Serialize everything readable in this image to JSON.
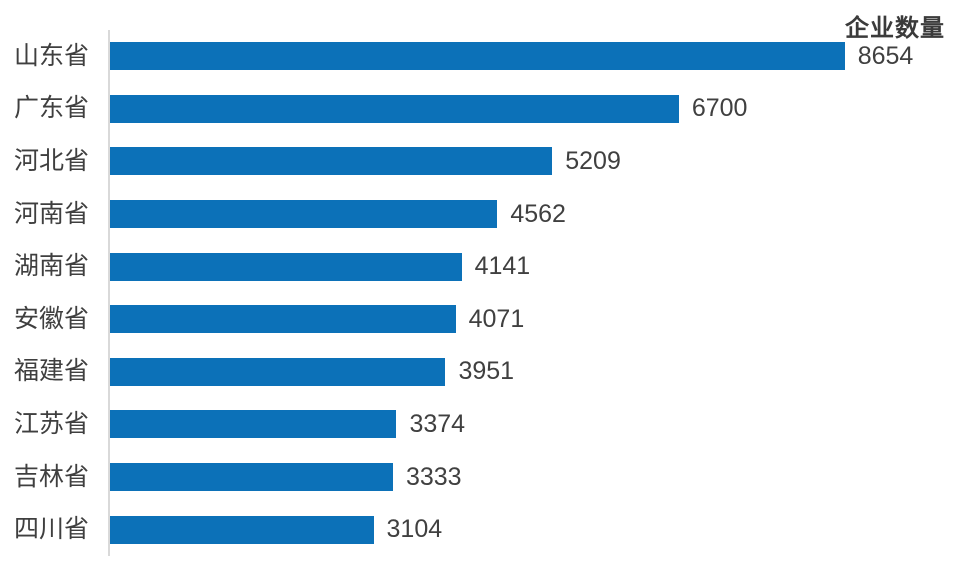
{
  "page": {
    "background": "#FFFFFF"
  },
  "chart_data": {
    "type": "bar",
    "orientation": "horizontal",
    "title": "企业数量",
    "categories": [
      "山东省",
      "广东省",
      "河北省",
      "河南省",
      "湖南省",
      "安徽省",
      "福建省",
      "江苏省",
      "吉林省",
      "四川省"
    ],
    "values": [
      8654,
      6700,
      5209,
      4562,
      4141,
      4071,
      3951,
      3374,
      3333,
      3104
    ],
    "xlim": [
      0,
      10000
    ],
    "grid": false,
    "legend": false,
    "value_labels": "outside-end",
    "bar_color": "#0C71B8",
    "label_color": "#3F3F3F",
    "value_color": "#404040",
    "title_color": "#3B3B3B",
    "axis_color": "#D9D9D9"
  }
}
